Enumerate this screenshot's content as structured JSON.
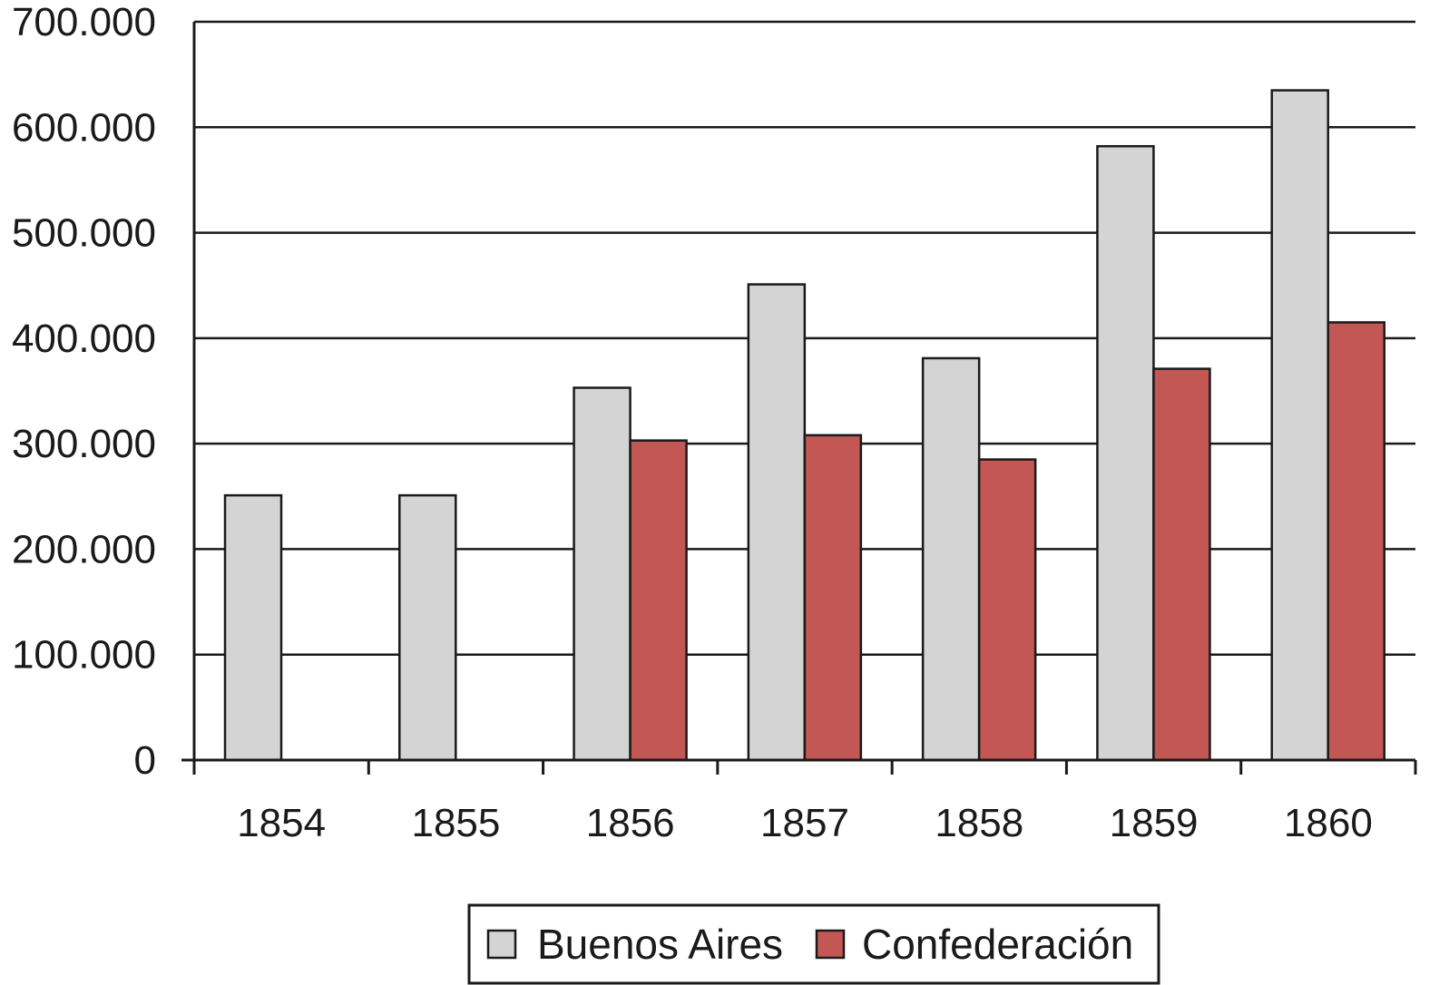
{
  "chart_data": {
    "type": "bar",
    "categories": [
      "1854",
      "1855",
      "1856",
      "1857",
      "1858",
      "1859",
      "1860"
    ],
    "series": [
      {
        "name": "Buenos Aires",
        "color": "#d3d4d3",
        "values": [
          251000,
          251000,
          353000,
          451000,
          381000,
          582000,
          635000
        ]
      },
      {
        "name": "Confederación",
        "color": "#c25753",
        "values": [
          null,
          null,
          303000,
          308000,
          285000,
          371000,
          415000
        ]
      }
    ],
    "ylim": [
      0,
      700000
    ],
    "yticks": [
      0,
      100000,
      200000,
      300000,
      400000,
      500000,
      600000,
      700000
    ],
    "ytick_labels": [
      "0",
      "100.000",
      "200.000",
      "300.000",
      "400.000",
      "500.000",
      "600.000",
      "700.000"
    ],
    "grid": true,
    "legend_position": "bottom-center",
    "title": "",
    "xlabel": "",
    "ylabel": ""
  }
}
